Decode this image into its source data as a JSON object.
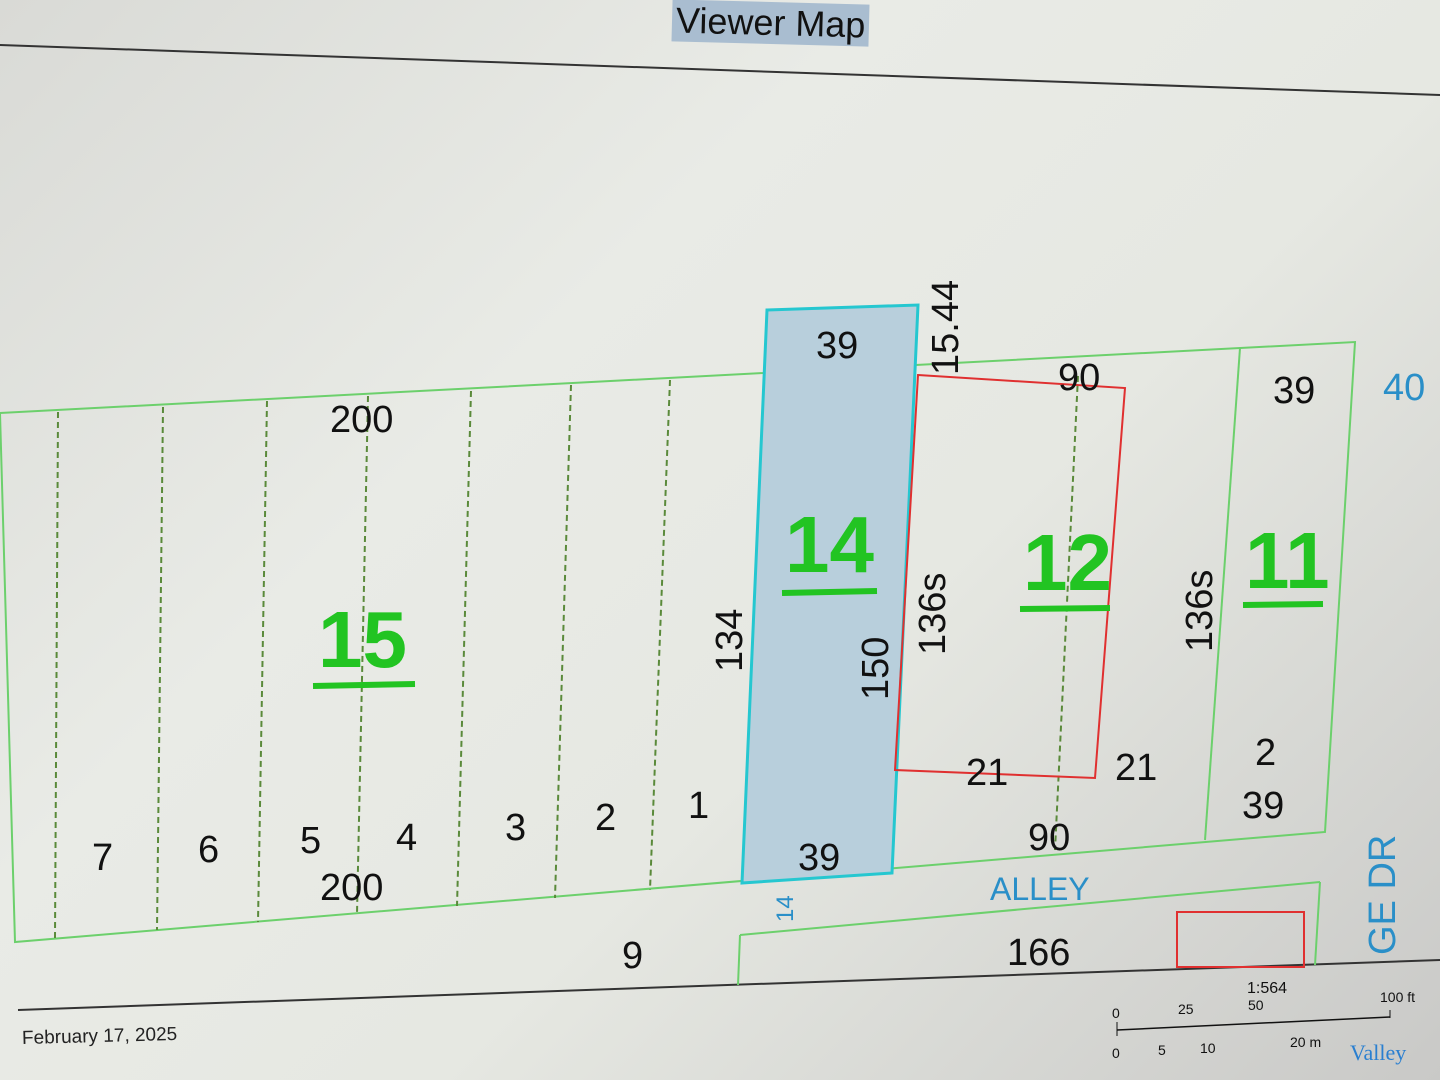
{
  "header": {
    "title": "Viewer Map"
  },
  "footer": {
    "date": "February 17, 2025",
    "logo": "Valley"
  },
  "map": {
    "lots": {
      "l15": "15",
      "l14": "14",
      "l12": "12",
      "l11": "11"
    },
    "dims": {
      "top200": "200",
      "bottom200": "200",
      "d134": "134",
      "top39": "39",
      "bottom39": "39",
      "d150": "150",
      "d1544": "15.44",
      "d136a": "136s",
      "d136b": "136s",
      "top90": "90",
      "bottom90": "90",
      "d21a": "21",
      "d21b": "21",
      "r39top": "39",
      "r39bottom": "39",
      "r2": "2",
      "d166": "166",
      "d9": "9"
    },
    "sublots": [
      "7",
      "6",
      "5",
      "4",
      "3",
      "2",
      "1"
    ],
    "street": {
      "alley": "ALLEY",
      "drive": "GE DR",
      "parcel40": "40",
      "small14": "14"
    },
    "highlight_color": "#b8cfdc",
    "parcel_outline_color": "#25c7d0",
    "selection_color": "#e03030"
  },
  "scale": {
    "ratio": "1:564",
    "ft": [
      "0",
      "25",
      "50",
      "100 ft"
    ],
    "m": [
      "0",
      "5",
      "10",
      "20 m"
    ]
  }
}
